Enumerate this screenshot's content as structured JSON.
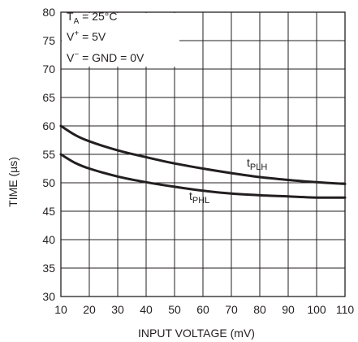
{
  "chart_data": {
    "type": "line",
    "title": "",
    "xlabel": "INPUT VOLTAGE (mV)",
    "ylabel": "TIME (µs)",
    "xlim": [
      10,
      110
    ],
    "ylim": [
      30,
      80
    ],
    "x_ticks": [
      10,
      20,
      30,
      40,
      50,
      60,
      70,
      80,
      90,
      100,
      110
    ],
    "y_ticks": [
      30,
      35,
      40,
      45,
      50,
      55,
      60,
      65,
      70,
      75,
      80
    ],
    "grid": true,
    "conditions": {
      "line1": {
        "pre": "T",
        "sub": "A",
        "post": " = 25°C"
      },
      "line2": {
        "pre": "V",
        "sup": "+",
        "post": " = 5V"
      },
      "line3": {
        "pre": "V",
        "sup": "−",
        "post": " = GND = 0V"
      }
    },
    "series": [
      {
        "name": "tPLH",
        "label": {
          "main": "t",
          "sub": "PLH"
        },
        "x": [
          10,
          15,
          20,
          30,
          40,
          50,
          60,
          70,
          80,
          90,
          100,
          110
        ],
        "y": [
          60.0,
          58.4,
          57.3,
          55.7,
          54.5,
          53.4,
          52.5,
          51.7,
          51.0,
          50.5,
          50.1,
          49.8
        ]
      },
      {
        "name": "tPHL",
        "label": {
          "main": "t",
          "sub": "PHL"
        },
        "x": [
          10,
          15,
          20,
          30,
          40,
          50,
          60,
          70,
          80,
          90,
          100,
          110
        ],
        "y": [
          55.0,
          53.5,
          52.5,
          51.1,
          50.1,
          49.3,
          48.6,
          48.1,
          47.8,
          47.6,
          47.4,
          47.4
        ]
      }
    ],
    "line_color": "#231f20"
  }
}
